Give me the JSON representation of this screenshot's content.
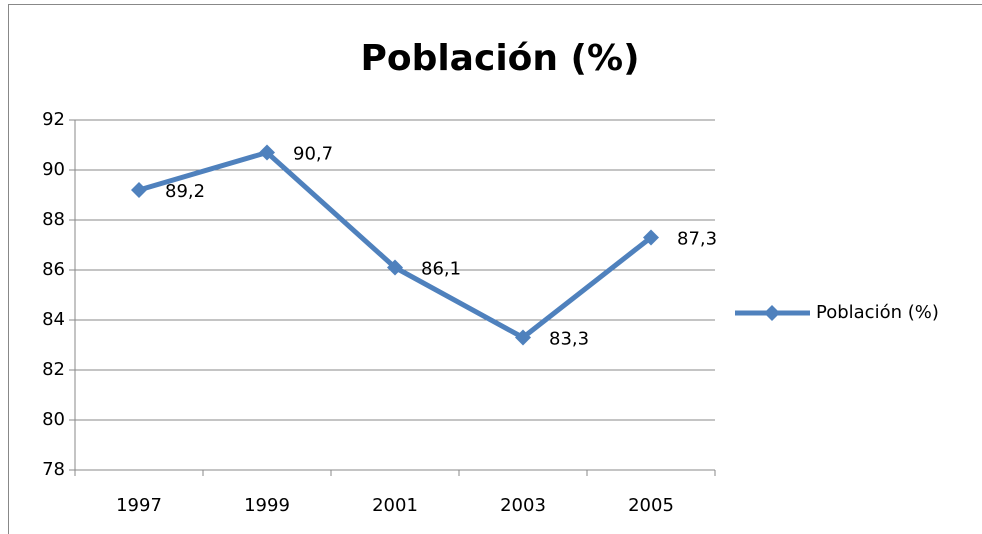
{
  "chart_data": {
    "type": "line",
    "title": "Población  (%)",
    "categories": [
      "1997",
      "1999",
      "2001",
      "2003",
      "2005"
    ],
    "series": [
      {
        "name": "Población  (%)",
        "color": "#4f81bd",
        "values": [
          89.2,
          90.7,
          86.1,
          83.3,
          87.3
        ],
        "value_labels": [
          "89,2",
          "90,7",
          "86,1",
          "83,3",
          "87,3"
        ]
      }
    ],
    "ylim": [
      78,
      92
    ],
    "yticks": [
      78,
      80,
      82,
      84,
      86,
      88,
      90,
      92
    ],
    "grid": true,
    "legend": "right"
  }
}
